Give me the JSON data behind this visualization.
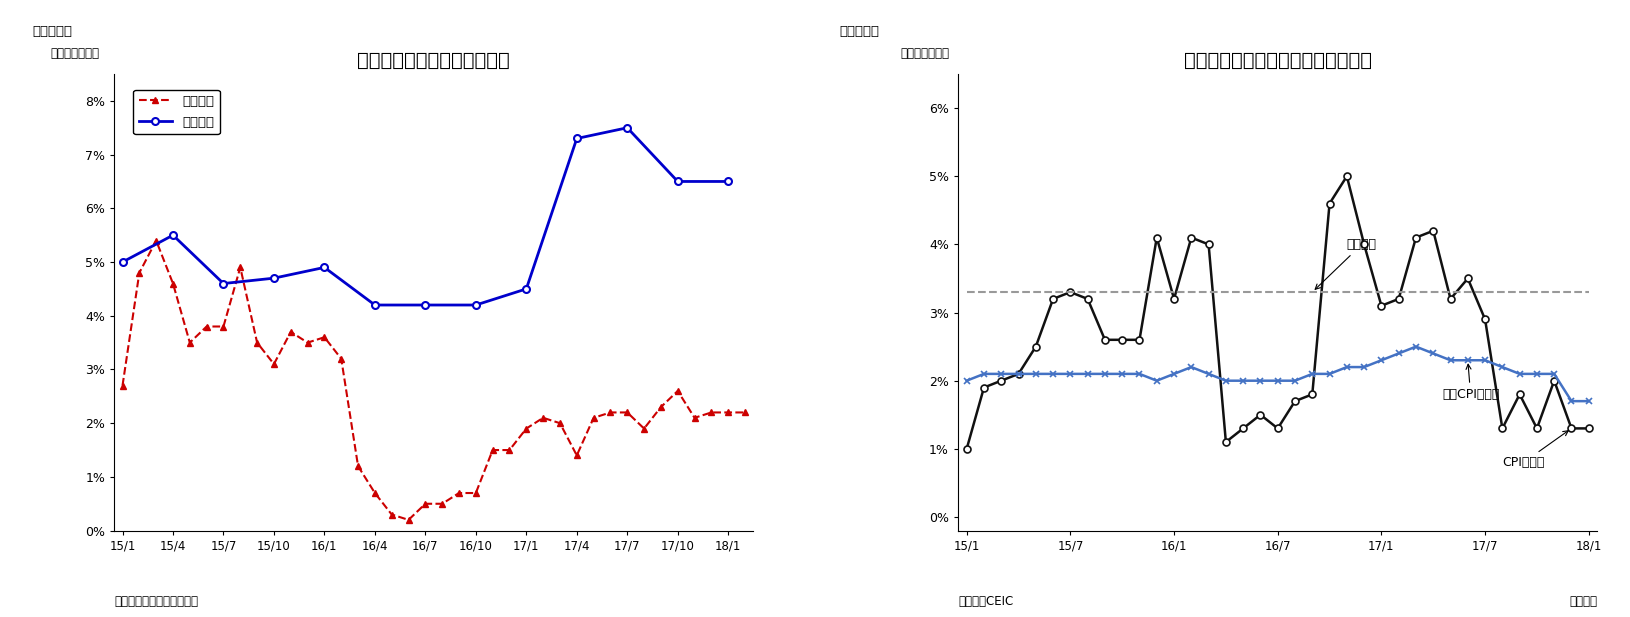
{
  "chart3": {
    "title": "雇用者数と民間給与の伸び率",
    "subtitle_left": "（図表３）",
    "ylabel": "（前年同期比）",
    "xlabel_note": "（資料）マレーシア統計庁",
    "ylim": [
      0,
      0.085
    ],
    "yticks": [
      0,
      0.01,
      0.02,
      0.03,
      0.04,
      0.05,
      0.06,
      0.07,
      0.08
    ],
    "ytick_labels": [
      "0%",
      "1%",
      "2%",
      "3%",
      "4%",
      "5%",
      "6%",
      "7%",
      "8%"
    ],
    "xtick_labels": [
      "15/1",
      "15/4",
      "15/7",
      "15/10",
      "16/1",
      "16/4",
      "16/7",
      "16/10",
      "17/1",
      "17/4",
      "17/7",
      "17/10",
      "18/1"
    ],
    "employment_y": [
      0.027,
      0.048,
      0.054,
      0.046,
      0.035,
      0.038,
      0.038,
      0.049,
      0.035,
      0.031,
      0.037,
      0.035,
      0.036,
      0.032,
      0.012,
      0.007,
      0.003,
      0.002,
      0.005,
      0.005,
      0.007,
      0.007,
      0.015,
      0.015,
      0.019,
      0.021,
      0.02,
      0.014,
      0.021,
      0.022,
      0.022,
      0.019,
      0.023,
      0.026,
      0.021,
      0.022,
      0.022,
      0.022
    ],
    "wage_x": [
      0,
      3,
      6,
      9,
      12,
      15,
      18,
      21,
      24,
      27,
      30,
      33,
      36
    ],
    "wage_y": [
      0.05,
      0.055,
      0.046,
      0.047,
      0.049,
      0.042,
      0.042,
      0.042,
      0.045,
      0.073,
      0.075,
      0.065,
      0.065
    ],
    "employment_color": "#cc0000",
    "wage_color": "#0000cc",
    "legend_labels": [
      "雇用者数",
      "民間給与"
    ]
  },
  "chart4": {
    "title": "マレーシアのインフレ率・政策金利",
    "subtitle_left": "（図表４）",
    "ylabel": "（前年同月比）",
    "xlabel_note_left": "（資料）CEIC",
    "xlabel_note_right": "（月次）",
    "ylim": [
      -0.002,
      0.065
    ],
    "yticks": [
      0,
      0.01,
      0.02,
      0.03,
      0.04,
      0.05,
      0.06
    ],
    "ytick_labels": [
      "0%",
      "1%",
      "2%",
      "3%",
      "4%",
      "5%",
      "6%"
    ],
    "xtick_labels": [
      "15/1",
      "15/7",
      "16/1",
      "16/7",
      "17/1",
      "17/7",
      "18/1"
    ],
    "policy_rate_y": [
      0.033,
      0.033,
      0.033,
      0.033,
      0.033,
      0.033,
      0.033,
      0.033,
      0.033,
      0.033,
      0.033,
      0.033,
      0.033,
      0.033,
      0.033,
      0.033,
      0.033,
      0.033,
      0.033,
      0.033,
      0.033,
      0.033,
      0.033,
      0.033,
      0.033,
      0.033,
      0.033,
      0.033,
      0.033,
      0.033,
      0.033,
      0.033,
      0.033,
      0.033,
      0.033,
      0.033,
      0.033
    ],
    "cpi_y": [
      0.01,
      0.019,
      0.02,
      0.021,
      0.025,
      0.032,
      0.033,
      0.032,
      0.026,
      0.026,
      0.026,
      0.041,
      0.032,
      0.041,
      0.04,
      0.011,
      0.013,
      0.015,
      0.013,
      0.017,
      0.018,
      0.046,
      0.05,
      0.04,
      0.031,
      0.032,
      0.041,
      0.042,
      0.032,
      0.035,
      0.029,
      0.013,
      0.018,
      0.013,
      0.02,
      0.013,
      0.013
    ],
    "core_cpi_y": [
      0.02,
      0.021,
      0.021,
      0.021,
      0.021,
      0.021,
      0.021,
      0.021,
      0.021,
      0.021,
      0.021,
      0.02,
      0.021,
      0.022,
      0.021,
      0.02,
      0.02,
      0.02,
      0.02,
      0.02,
      0.021,
      0.021,
      0.022,
      0.022,
      0.023,
      0.024,
      0.025,
      0.024,
      0.023,
      0.023,
      0.023,
      0.022,
      0.021,
      0.021,
      0.021,
      0.017,
      0.017
    ],
    "policy_rate_color": "#999999",
    "cpi_color": "#111111",
    "core_cpi_color": "#4472c4",
    "annotation_policy": "政策金利",
    "annotation_core_cpi": "コアCPI上昇率",
    "annotation_cpi": "CPI上昇率"
  }
}
